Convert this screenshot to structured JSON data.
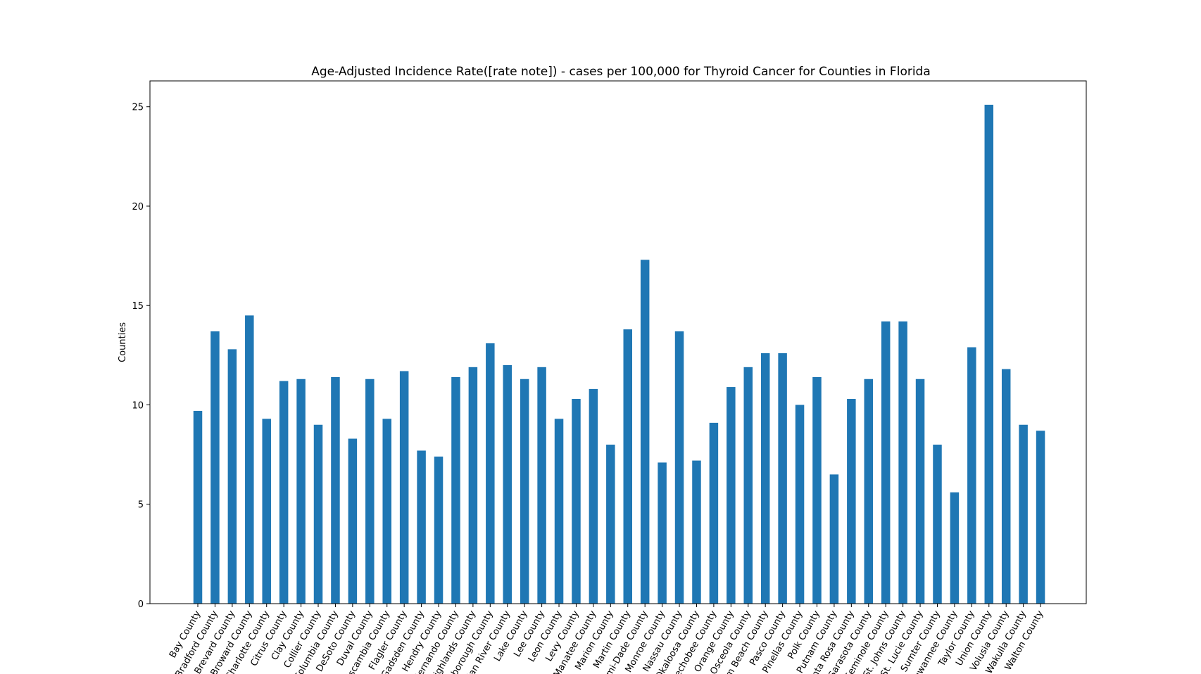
{
  "chart_data": {
    "type": "bar",
    "title": "Age-Adjusted Incidence Rate([rate note]) - cases per 100,000 for Thyroid Cancer for Counties in Florida",
    "xlabel": "",
    "ylabel": "Counties",
    "ylim": [
      0,
      26.3
    ],
    "yticks": [
      0,
      5,
      10,
      15,
      20,
      25
    ],
    "grid": false,
    "bar_color": "#1f77b4",
    "categories": [
      "Bay County",
      "Bradford County",
      "Brevard County",
      "Broward County",
      "Charlotte County",
      "Citrus County",
      "Clay County",
      "Collier County",
      "Columbia County",
      "DeSoto County",
      "Duval County",
      "Escambia County",
      "Flagler County",
      "Gadsden County",
      "Hendry County",
      "Hernando County",
      "Highlands County",
      "Hillsborough County",
      "Indian River County",
      "Lake County",
      "Lee County",
      "Leon County",
      "Levy County",
      "Manatee County",
      "Marion County",
      "Martin County",
      "Miami-Dade County",
      "Monroe County",
      "Nassau County",
      "Okaloosa County",
      "Okeechobee County",
      "Orange County",
      "Osceola County",
      "Palm Beach County",
      "Pasco County",
      "Pinellas County",
      "Polk County",
      "Putnam County",
      "Santa Rosa County",
      "Sarasota County",
      "Seminole County",
      "St. Johns County",
      "St. Lucie County",
      "Sumter County",
      "Suwannee County",
      "Taylor County",
      "Union County",
      "Volusia County",
      "Wakulla County",
      "Walton County"
    ],
    "values": [
      9.7,
      13.7,
      12.8,
      14.5,
      9.3,
      11.2,
      11.3,
      9.0,
      11.4,
      8.3,
      11.3,
      9.3,
      11.7,
      7.7,
      7.4,
      11.4,
      11.9,
      13.1,
      12.0,
      11.3,
      11.9,
      9.3,
      10.3,
      10.8,
      8.0,
      13.8,
      17.3,
      7.1,
      13.7,
      7.2,
      9.1,
      10.9,
      11.9,
      12.6,
      12.6,
      10.0,
      11.4,
      6.5,
      10.3,
      11.3,
      14.2,
      14.2,
      11.3,
      8.0,
      5.6,
      12.9,
      25.1,
      11.8,
      9.0,
      8.7
    ]
  }
}
